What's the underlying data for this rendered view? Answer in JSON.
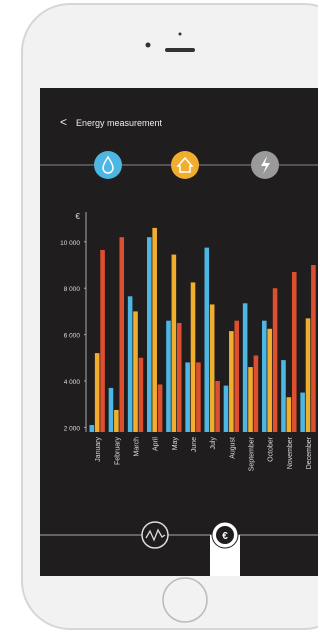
{
  "header": {
    "title": "Energy measurement"
  },
  "chart_data": {
    "type": "bar",
    "y_label": "€",
    "categories": [
      "January",
      "February",
      "March",
      "April",
      "May",
      "June",
      "July",
      "August",
      "September",
      "October",
      "November",
      "December"
    ],
    "series": [
      {
        "color": "#4db6e2",
        "values": [
          2100,
          3700,
          7650,
          10200,
          6600,
          4800,
          9750,
          3800,
          7350,
          6600,
          4900,
          3500
        ]
      },
      {
        "color": "#f0ad2e",
        "values": [
          5200,
          2750,
          7000,
          10600,
          9450,
          8250,
          7300,
          6150,
          4600,
          6250,
          3300,
          6700
        ]
      },
      {
        "color": "#dd4f2f",
        "values": [
          9650,
          10200,
          5000,
          3850,
          6500,
          4800,
          4000,
          6600,
          5100,
          8000,
          8700,
          9000
        ]
      }
    ],
    "ylim": [
      1800,
      11200
    ],
    "yticks": [
      {
        "value": 2000,
        "label": "2 000"
      },
      {
        "value": 4000,
        "label": "4 000"
      },
      {
        "value": 6000,
        "label": "6 000"
      },
      {
        "value": 8000,
        "label": "8 000"
      },
      {
        "value": 10000,
        "label": "10 000"
      }
    ]
  }
}
